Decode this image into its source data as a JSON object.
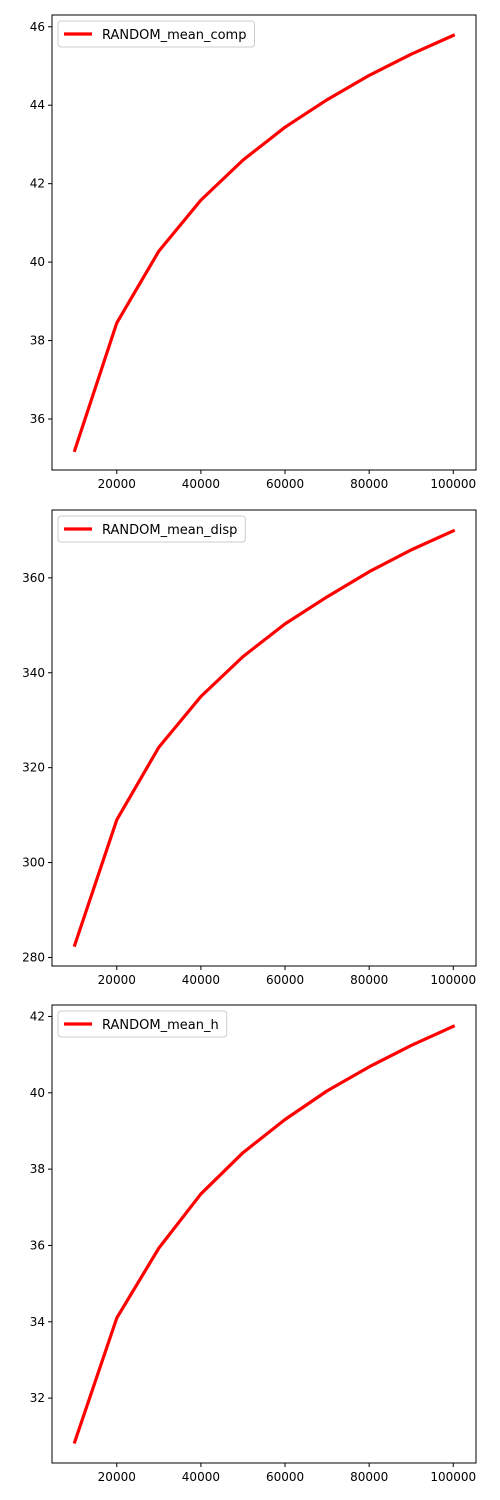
{
  "chart_data": [
    {
      "type": "line",
      "x": [
        10000,
        20000,
        30000,
        40000,
        50000,
        60000,
        70000,
        80000,
        90000,
        100000
      ],
      "xlim": [
        4600,
        105400
      ],
      "x_ticks": [
        20000,
        40000,
        60000,
        80000,
        100000
      ],
      "ylim": [
        34.7,
        46.3
      ],
      "y_ticks": [
        36,
        38,
        40,
        42,
        44,
        46
      ],
      "grid": false,
      "legend": "upper-left",
      "series": [
        {
          "name": "RANDOM_mean_comp",
          "color": "#ff0000",
          "values": [
            35.2,
            38.45,
            40.28,
            41.58,
            42.6,
            43.44,
            44.14,
            44.76,
            45.3,
            45.78
          ]
        }
      ]
    },
    {
      "type": "line",
      "x": [
        10000,
        20000,
        30000,
        40000,
        50000,
        60000,
        70000,
        80000,
        90000,
        100000
      ],
      "xlim": [
        4600,
        105400
      ],
      "x_ticks": [
        20000,
        40000,
        60000,
        80000,
        100000
      ],
      "ylim": [
        278.2,
        374.3
      ],
      "y_ticks": [
        280,
        300,
        320,
        340,
        360
      ],
      "grid": false,
      "legend": "upper-left",
      "series": [
        {
          "name": "RANDOM_mean_disp",
          "color": "#ff0000",
          "values": [
            282.6,
            309.0,
            324.3,
            335.0,
            343.4,
            350.3,
            356.0,
            361.3,
            365.9,
            369.9
          ]
        }
      ]
    },
    {
      "type": "line",
      "x": [
        10000,
        20000,
        30000,
        40000,
        50000,
        60000,
        70000,
        80000,
        90000,
        100000
      ],
      "xlim": [
        4600,
        105400
      ],
      "x_ticks": [
        20000,
        40000,
        60000,
        80000,
        100000
      ],
      "ylim": [
        30.3,
        42.3
      ],
      "y_ticks": [
        32,
        34,
        36,
        38,
        40,
        42
      ],
      "grid": false,
      "legend": "upper-left",
      "series": [
        {
          "name": "RANDOM_mean_h",
          "color": "#ff0000",
          "values": [
            30.85,
            34.1,
            35.93,
            37.35,
            38.43,
            39.3,
            40.05,
            40.68,
            41.24,
            41.74
          ]
        }
      ]
    }
  ]
}
